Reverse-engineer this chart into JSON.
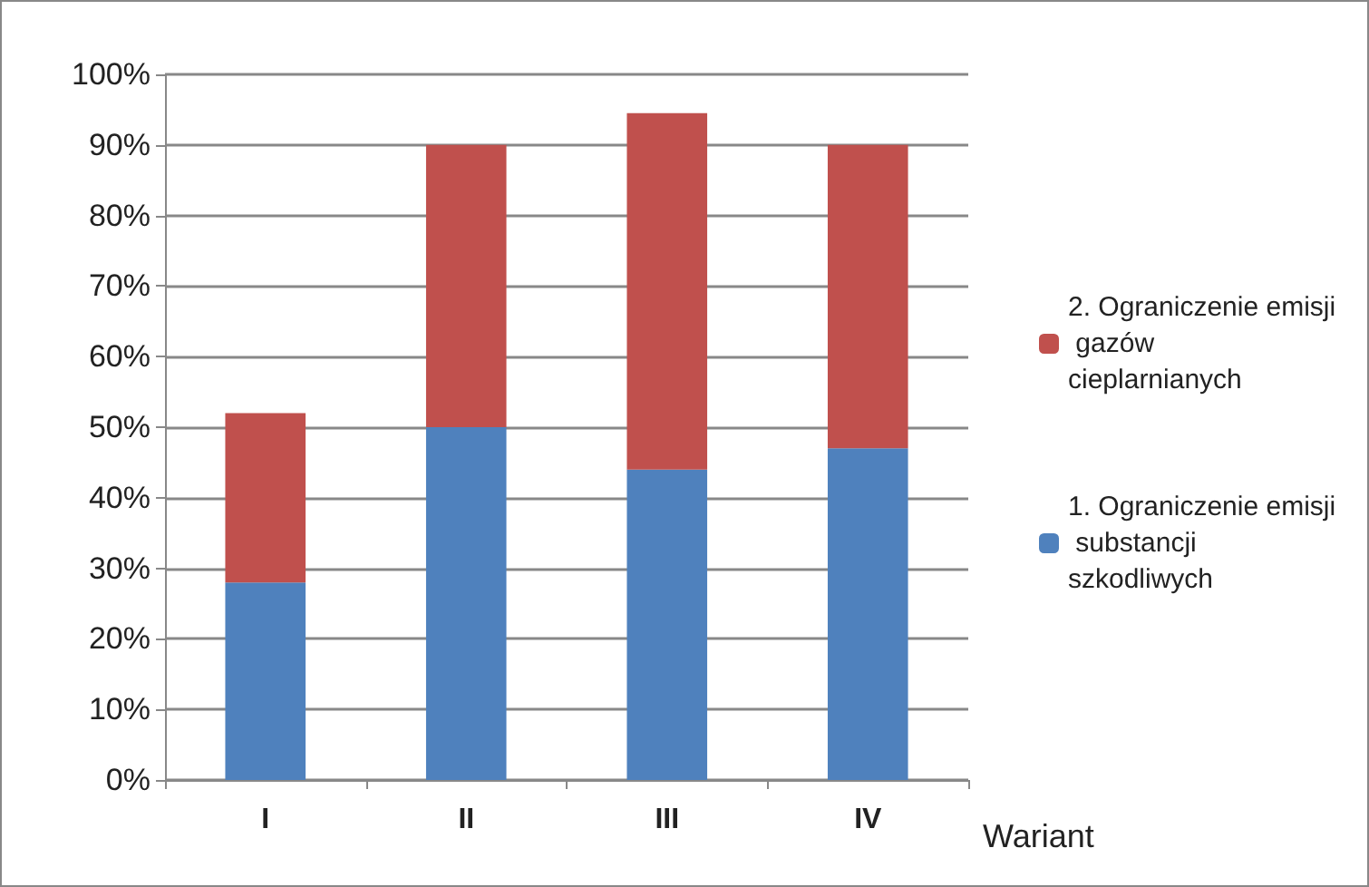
{
  "chart_data": {
    "type": "bar",
    "stacked": true,
    "xlabel": "Wariant",
    "categories": [
      "I",
      "II",
      "III",
      "IV"
    ],
    "series": [
      {
        "name": "1. Ograniczenie emisji substancji szkodliwych",
        "color": "#4f81bd",
        "values": [
          28,
          50,
          44,
          47
        ]
      },
      {
        "name": "2. Ograniczenie emisji gazów cieplarnianych",
        "color": "#c0504d",
        "values": [
          24,
          40,
          50.5,
          43
        ]
      }
    ],
    "ylim": [
      0,
      100
    ],
    "yticks": [
      {
        "value": 0,
        "label": "0%"
      },
      {
        "value": 10,
        "label": "10%"
      },
      {
        "value": 20,
        "label": "20%"
      },
      {
        "value": 30,
        "label": "30%"
      },
      {
        "value": 40,
        "label": "40%"
      },
      {
        "value": 50,
        "label": "50%"
      },
      {
        "value": 60,
        "label": "60%"
      },
      {
        "value": 70,
        "label": "70%"
      },
      {
        "value": 80,
        "label": "80%"
      },
      {
        "value": 90,
        "label": "90%"
      },
      {
        "value": 100,
        "label": "100%"
      }
    ],
    "grid": "y",
    "legend": "right"
  }
}
